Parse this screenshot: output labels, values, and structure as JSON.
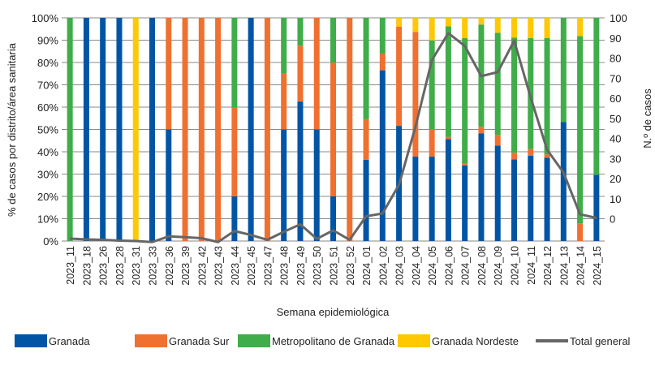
{
  "chart_data": {
    "type": "bar",
    "stacked": true,
    "categories": [
      "2023_11",
      "2023_18",
      "2023_26",
      "2023_28",
      "2023_31",
      "2023_33",
      "2023_36",
      "2023_39",
      "2023_42",
      "2023_43",
      "2023_44",
      "2023_45",
      "2023_47",
      "2023_48",
      "2023_49",
      "2023_50",
      "2023_51",
      "2023_52",
      "2024_01",
      "2024_02",
      "2024_03",
      "2024_04",
      "2024_05",
      "2024_06",
      "2024_07",
      "2024_08",
      "2024_09",
      "2024_10",
      "2024_11",
      "2024_12",
      "2024_13",
      "2024_14",
      "2024_15"
    ],
    "series": [
      {
        "name": "Granada",
        "color": "#0055a4",
        "values": [
          0,
          100,
          100,
          100,
          0,
          100,
          50,
          0,
          0,
          0,
          20,
          100,
          0,
          50,
          62.5,
          50,
          20,
          0,
          36.4,
          76.5,
          51.6,
          37.8,
          37.8,
          45.7,
          33.9,
          48.2,
          42.8,
          36.6,
          38.2,
          37.3,
          53.3,
          0,
          29.7
        ]
      },
      {
        "name": "Granada Sur",
        "color": "#f07030",
        "values": [
          0,
          0,
          0,
          0,
          0,
          0,
          50,
          100,
          100,
          100,
          40,
          0,
          100,
          25,
          25,
          50,
          60,
          100,
          18.2,
          7.5,
          44.4,
          55.9,
          12.3,
          1,
          1,
          3,
          4.7,
          3,
          3,
          1.5,
          0,
          7.9,
          0
        ]
      },
      {
        "name": "Metropolitano de Granada",
        "color": "#3fad49",
        "values": [
          100,
          0,
          0,
          0,
          0,
          0,
          0,
          0,
          0,
          0,
          40,
          0,
          0,
          25,
          12.5,
          0,
          20,
          0,
          45.4,
          16,
          0,
          0,
          39.8,
          49.5,
          56,
          45.8,
          45.8,
          51.5,
          49.7,
          52.1,
          46.7,
          83.9,
          70.3
        ]
      },
      {
        "name": "Granada Nordeste",
        "color": "#ffc800",
        "values": [
          0,
          0,
          0,
          0,
          100,
          0,
          0,
          0,
          0,
          0,
          0,
          0,
          0,
          0,
          0,
          0,
          0,
          0,
          0,
          0,
          4,
          6.3,
          10.1,
          3.8,
          9.1,
          3,
          6.7,
          8.9,
          9.1,
          9.1,
          0,
          8.2,
          0
        ]
      }
    ],
    "line_series": {
      "name": "Total general",
      "color": "#666666",
      "axis": "right",
      "values": [
        -9.8,
        -10.2,
        -10.4,
        -10.8,
        -11,
        -11.5,
        -8.7,
        -9.1,
        -9.6,
        -11.5,
        -6,
        -8,
        -10.4,
        -6.4,
        -2.7,
        -9.9,
        -5.7,
        -10.4,
        1.3,
        2.7,
        17,
        45.8,
        79,
        92.4,
        86,
        71,
        73,
        88.6,
        60.5,
        34.4,
        23,
        2.3,
        0.5
      ]
    },
    "xlabel": "Semana epidemiológica",
    "ylabel": "% de casos por distrito/área sanitaria",
    "y2label": "N.º de casos",
    "ylim": [
      0,
      100
    ],
    "y_ticks": [
      "0%",
      "10%",
      "20%",
      "30%",
      "40%",
      "50%",
      "60%",
      "70%",
      "80%",
      "90%",
      "100%"
    ],
    "y2lim": [
      -11,
      100
    ],
    "y2_ticks": [
      "0",
      "10",
      "20",
      "30",
      "40",
      "50",
      "60",
      "70",
      "80",
      "90",
      "100"
    ],
    "grid": true,
    "legend_position": "bottom"
  }
}
